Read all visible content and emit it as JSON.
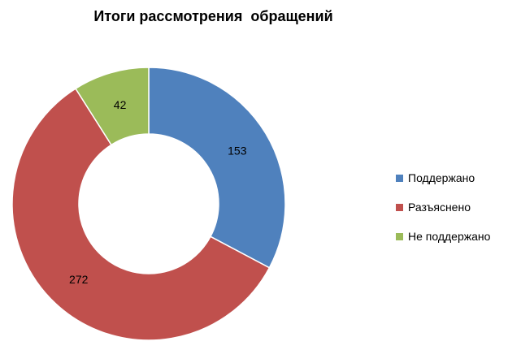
{
  "chart_data": {
    "type": "pie",
    "variant": "doughnut",
    "title": "Итоги рассмотрения  обращений",
    "categories": [
      "Поддержано",
      "Разъяснено",
      "Не поддержано"
    ],
    "values": [
      153,
      272,
      42
    ],
    "colors": [
      "#4f81bd",
      "#c0504d",
      "#9bbb59"
    ],
    "data_labels": [
      "153",
      "272",
      "42"
    ],
    "legend_position": "right",
    "start_angle_deg": 0,
    "direction": "clockwise"
  }
}
